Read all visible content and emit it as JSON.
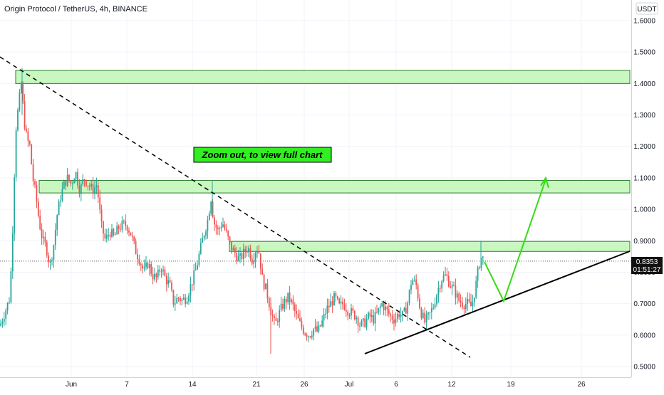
{
  "chart_data": {
    "type": "candlestick",
    "title": "Origin Protocol / TetherUS, 4h, BINANCE",
    "currency": "USDT",
    "annotation": "Zoom out, to view full chart",
    "price_label": "0.8353",
    "countdown": "01:51:27",
    "y_ticks": [
      "1.6000",
      "1.5000",
      "1.4000",
      "1.3000",
      "1.2000",
      "1.1000",
      "1.0000",
      "0.9000",
      "0.8000",
      "0.7000",
      "0.6000",
      "0.5000"
    ],
    "x_ticks": [
      "Jun",
      "7",
      "14",
      "21",
      "26",
      "Jul",
      "6",
      "12",
      "19",
      "26"
    ],
    "ylim": [
      0.47,
      1.65
    ],
    "xlim": [
      "2021-05-25",
      "2021-07-30"
    ],
    "current_price": 0.8353,
    "zones": [
      {
        "from": 1.4,
        "to": 1.442
      },
      {
        "from": 1.052,
        "to": 1.092
      },
      {
        "from": 0.866,
        "to": 0.898
      }
    ],
    "colors": {
      "up": "#26a69a",
      "down": "#ef5350",
      "zone_fill": "#c8f7c0",
      "zone_stroke": "#2e7d32",
      "arrow": "#33dd11",
      "annotation_bg": "#33ee22",
      "price_bg": "#111111"
    }
  }
}
